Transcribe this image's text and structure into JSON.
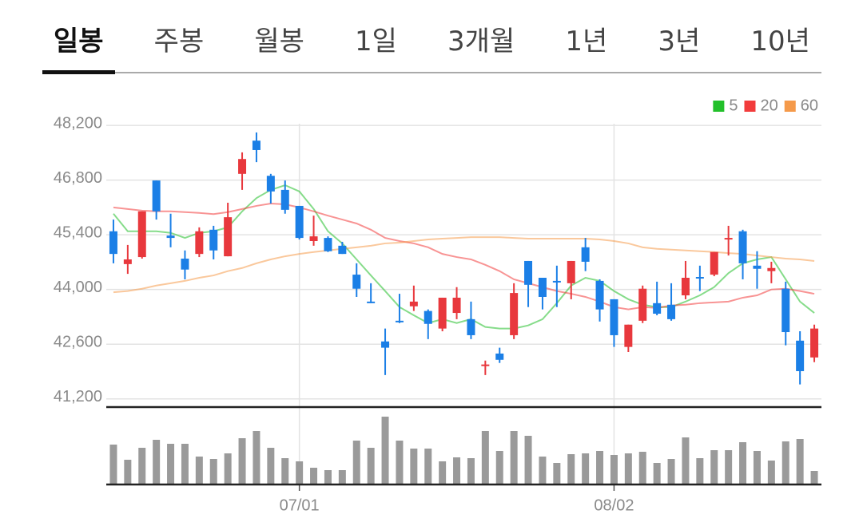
{
  "tabs": {
    "items": [
      "일봉",
      "주봉",
      "월봉",
      "1일",
      "3개월",
      "1년",
      "3년",
      "10년"
    ],
    "active": 0
  },
  "chart_data": {
    "type": "candlestick",
    "categories": [
      null,
      null,
      null,
      null,
      null,
      null,
      null,
      null,
      null,
      null,
      null,
      null,
      null,
      "07/01",
      null,
      null,
      null,
      null,
      null,
      null,
      null,
      null,
      null,
      null,
      null,
      null,
      null,
      null,
      null,
      null,
      null,
      null,
      null,
      null,
      null,
      "08/02",
      null,
      null,
      null,
      null,
      null,
      null,
      null,
      null,
      null,
      null,
      null,
      null,
      null,
      null
    ],
    "open": [
      45490,
      44650,
      44830,
      46790,
      45380,
      44790,
      44910,
      45530,
      44850,
      46960,
      47810,
      46910,
      46550,
      46140,
      45240,
      45320,
      45120,
      44380,
      43690,
      42670,
      43200,
      43570,
      43450,
      43000,
      43400,
      43240,
      42040,
      42360,
      42830,
      44730,
      44300,
      44220,
      44160,
      45080,
      44220,
      43750,
      42530,
      43200,
      43650,
      43610,
      43850,
      44320,
      44380,
      45280,
      45490,
      44610,
      44470,
      44020,
      42690,
      42260
    ],
    "high": [
      45790,
      45140,
      46000,
      46790,
      45940,
      45000,
      45590,
      45630,
      46220,
      47510,
      48020,
      46960,
      46790,
      46140,
      45890,
      45360,
      45220,
      44670,
      44160,
      43000,
      43890,
      44100,
      43490,
      43790,
      44060,
      43690,
      42180,
      42510,
      44160,
      44730,
      44300,
      44610,
      44730,
      45320,
      44260,
      43750,
      43100,
      44100,
      44200,
      44160,
      44730,
      44610,
      44960,
      45630,
      45530,
      44980,
      44710,
      44200,
      42930,
      43100
    ],
    "low": [
      44670,
      44400,
      44790,
      45790,
      45080,
      44260,
      44830,
      44770,
      44850,
      46550,
      47260,
      46200,
      45940,
      45280,
      45120,
      44960,
      44910,
      43810,
      43650,
      41810,
      43140,
      43450,
      42730,
      42930,
      43240,
      42730,
      41810,
      42120,
      42730,
      43550,
      43490,
      43550,
      43750,
      44470,
      43180,
      42530,
      42400,
      43140,
      43340,
      43200,
      43750,
      43960,
      44340,
      44870,
      44260,
      44020,
      44160,
      42570,
      41570,
      42140
    ],
    "close": [
      44910,
      44770,
      46000,
      46000,
      45320,
      44510,
      45490,
      45000,
      45850,
      47340,
      47570,
      46510,
      46040,
      45320,
      45360,
      44980,
      44910,
      44020,
      43650,
      42510,
      43160,
      43690,
      43120,
      43790,
      43790,
      42830,
      42080,
      42200,
      43910,
      44120,
      43810,
      44180,
      44730,
      44710,
      43490,
      42830,
      43100,
      44020,
      43380,
      43240,
      44300,
      44280,
      44960,
      45320,
      44670,
      44530,
      44550,
      42910,
      41910,
      43000
    ],
    "up_color": "#e8383d",
    "down_color": "#1b7fe6",
    "series": [
      {
        "name": "5",
        "color": "#22c02a",
        "values": [
          45940,
          45490,
          45490,
          45490,
          45450,
          45320,
          45450,
          45490,
          45590,
          46000,
          46340,
          46550,
          46670,
          46510,
          46060,
          45490,
          45180,
          44770,
          44360,
          43960,
          43550,
          43340,
          43140,
          43240,
          43140,
          43240,
          43040,
          43000,
          43000,
          43080,
          43240,
          43650,
          44100,
          44300,
          44220,
          43960,
          43750,
          43610,
          43550,
          43550,
          43690,
          43850,
          44060,
          44420,
          44670,
          44770,
          44830,
          44260,
          43690,
          43400
        ]
      },
      {
        "name": "20",
        "color": "#f23c3c",
        "values": [
          46100,
          46060,
          46020,
          46000,
          46000,
          45980,
          45960,
          45930,
          45980,
          46060,
          46140,
          46200,
          46180,
          46100,
          46000,
          45890,
          45790,
          45690,
          45530,
          45320,
          45240,
          45180,
          45080,
          44910,
          44830,
          44770,
          44630,
          44470,
          44260,
          44160,
          44060,
          43960,
          43890,
          43810,
          43690,
          43550,
          43490,
          43550,
          43530,
          43590,
          43610,
          43650,
          43670,
          43690,
          43790,
          43850,
          44000,
          44020,
          43960,
          43890
        ]
      },
      {
        "name": "60",
        "color": "#f59a4a",
        "values": [
          43930,
          43960,
          44020,
          44100,
          44160,
          44220,
          44300,
          44360,
          44470,
          44550,
          44670,
          44770,
          44850,
          44910,
          44960,
          45000,
          45040,
          45080,
          45120,
          45180,
          45200,
          45240,
          45280,
          45300,
          45320,
          45340,
          45340,
          45340,
          45320,
          45300,
          45300,
          45300,
          45300,
          45300,
          45280,
          45240,
          45180,
          45080,
          45040,
          45020,
          45000,
          44980,
          44960,
          44930,
          44910,
          44870,
          44830,
          44790,
          44770,
          44730
        ]
      }
    ],
    "ylim": [
      40990,
      48550
    ],
    "yticks": [
      {
        "value": 41200,
        "label": "41,200"
      },
      {
        "value": 42600,
        "label": "42,600"
      },
      {
        "value": 44000,
        "label": "44,000"
      },
      {
        "value": 45400,
        "label": "45,400"
      },
      {
        "value": 46800,
        "label": "46,800"
      },
      {
        "value": 48200,
        "label": "48,200"
      }
    ],
    "grid": true,
    "legend": "top-right",
    "volume": {
      "color": "#9a9a9a",
      "ylim": [
        0,
        92
      ],
      "values": [
        50,
        31,
        46,
        56,
        51,
        51,
        35,
        32,
        39,
        58,
        67,
        46,
        33,
        29,
        21,
        18,
        18,
        55,
        46,
        85,
        55,
        45,
        45,
        29,
        34,
        33,
        67,
        42,
        67,
        61,
        35,
        27,
        38,
        39,
        42,
        37,
        39,
        41,
        27,
        32,
        59,
        33,
        43,
        43,
        53,
        42,
        30,
        54,
        57,
        17
      ]
    }
  }
}
